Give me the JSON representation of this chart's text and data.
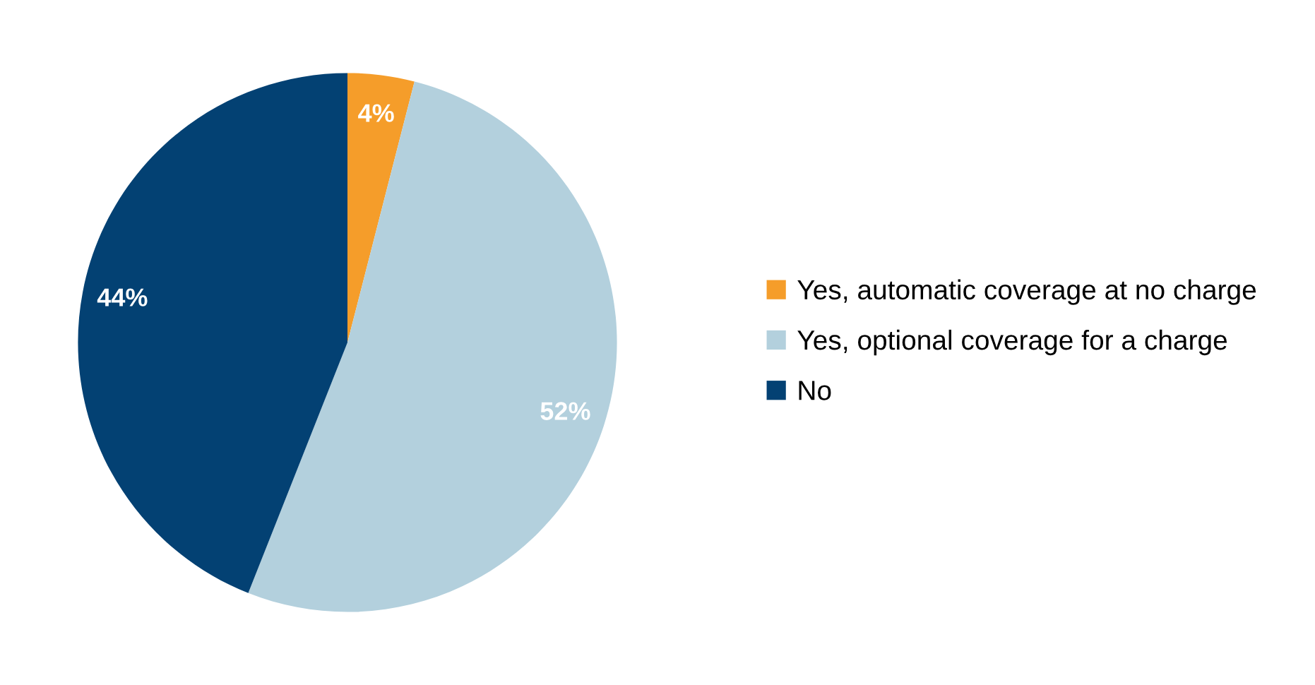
{
  "chart_data": {
    "type": "pie",
    "categories": [
      "Yes, automatic coverage at no charge",
      "Yes, optional coverage for a charge",
      "No"
    ],
    "values": [
      4,
      52,
      44
    ],
    "colors": [
      "#f59d2a",
      "#b3d0dd",
      "#034173"
    ],
    "value_labels": [
      "4%",
      "52%",
      "44%"
    ],
    "legend": "right"
  }
}
